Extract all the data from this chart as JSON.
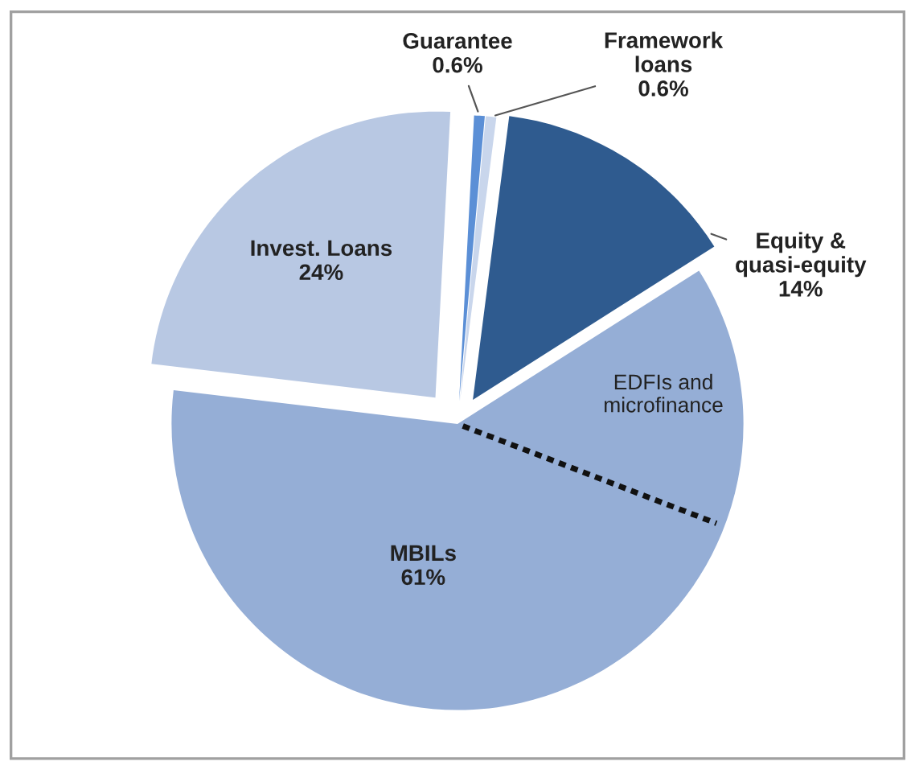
{
  "chart_data": {
    "type": "pie",
    "categories": [
      "Guarantee",
      "Framework loans",
      "Equity & quasi-equity",
      "MBILs",
      "Invest. Loans"
    ],
    "values": [
      0.6,
      0.6,
      14,
      61,
      24
    ],
    "value_labels": [
      "0.6%",
      "0.6%",
      "14%",
      "61%",
      "24%"
    ],
    "colors": [
      "#5b8fd6",
      "#c9d6ec",
      "#2f5b8f",
      "#95aed6",
      "#b8c8e3"
    ],
    "annotations": [
      "EDFIs and\nmicrofinance"
    ]
  }
}
